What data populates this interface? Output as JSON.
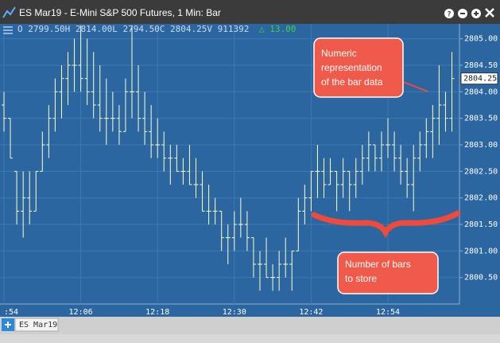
{
  "window": {
    "title": "ES Mar19 - E-Mini S&P 500 Futures, 1 Min: Bar",
    "info": "O 2799.50H 2814.00L 2794.50C 2804.25V 911392",
    "change": "△ 13.00",
    "tab": "ES Mar19"
  },
  "annotations": {
    "numeric": [
      "Numeric",
      "representation",
      "of the bar data"
    ],
    "bars": [
      "Number of bars",
      "to store"
    ]
  },
  "chart_data": {
    "type": "ohlc",
    "color": "#ffffc8",
    "categories": [
      ":54",
      null,
      null,
      null,
      null,
      null,
      null,
      null,
      null,
      null,
      null,
      null,
      "12:06",
      null,
      null,
      null,
      null,
      null,
      null,
      null,
      null,
      null,
      null,
      null,
      "12:18",
      null,
      null,
      null,
      null,
      null,
      null,
      null,
      null,
      null,
      null,
      null,
      "12:30",
      null,
      null,
      null,
      null,
      null,
      null,
      null,
      null,
      null,
      null,
      null,
      "12:42",
      null,
      null,
      null,
      null,
      null,
      null,
      null,
      null,
      null,
      null,
      null,
      "12:54",
      null,
      null,
      null,
      null,
      null,
      null,
      null,
      null,
      null,
      null
    ],
    "open": [
      2803.75,
      2803.5,
      2802.5,
      2801.75,
      2802.0,
      2801.75,
      2802.5,
      2803.0,
      2803.5,
      2804.0,
      2804.25,
      2804.5,
      2804.5,
      2804.25,
      2804.0,
      2803.75,
      2803.5,
      2803.5,
      2803.5,
      2803.25,
      2804.0,
      2804.0,
      2803.5,
      2803.25,
      2803.0,
      2803.0,
      2802.75,
      2802.75,
      2802.5,
      2802.5,
      2802.25,
      2802.25,
      2801.75,
      2801.75,
      2801.75,
      2801.25,
      2801.25,
      2801.5,
      2801.5,
      2801.25,
      2800.75,
      2800.75,
      2800.5,
      2800.5,
      2800.75,
      2800.75,
      2801.0,
      2801.75,
      2802.0,
      2802.5,
      2802.5,
      2802.25,
      2802.5,
      2802.25,
      2802.5,
      2802.25,
      2802.5,
      2802.75,
      2803.0,
      2802.75,
      2803.0,
      2803.0,
      2802.75,
      2802.5,
      2802.25,
      2802.75,
      2803.0,
      2803.25,
      2803.5,
      2803.75,
      2803.5
    ],
    "high": [
      2804.0,
      2803.5,
      2802.5,
      2802.5,
      2802.5,
      2802.5,
      2803.25,
      2803.75,
      2804.25,
      2804.5,
      2804.75,
      2805.0,
      2805.25,
      2805.0,
      2804.75,
      2804.5,
      2804.25,
      2804.0,
      2803.75,
      2804.25,
      2805.25,
      2804.5,
      2804.0,
      2803.75,
      2803.5,
      2803.25,
      2803.0,
      2803.0,
      2802.75,
      2803.0,
      2802.75,
      2802.5,
      2802.25,
      2802.0,
      2801.75,
      2801.5,
      2801.75,
      2802.0,
      2801.75,
      2801.25,
      2801.0,
      2801.25,
      2800.75,
      2801.0,
      2801.25,
      2801.0,
      2802.0,
      2802.25,
      2802.5,
      2803.0,
      2802.75,
      2802.75,
      2802.5,
      2802.75,
      2802.5,
      2802.75,
      2803.0,
      2803.25,
      2803.0,
      2803.25,
      2803.5,
      2803.25,
      2803.0,
      2802.75,
      2803.0,
      2803.25,
      2803.5,
      2803.75,
      2804.5,
      2804.0,
      2804.75
    ],
    "low": [
      2803.25,
      2802.75,
      2801.5,
      2801.25,
      2801.5,
      2801.75,
      2802.5,
      2802.75,
      2803.25,
      2803.5,
      2803.75,
      2804.0,
      2804.0,
      2803.75,
      2803.5,
      2803.25,
      2803.0,
      2803.25,
      2803.0,
      2803.25,
      2803.5,
      2803.25,
      2803.0,
      2802.75,
      2802.75,
      2802.5,
      2802.25,
      2802.5,
      2802.25,
      2802.25,
      2802.0,
      2801.75,
      2801.5,
      2801.5,
      2801.0,
      2800.75,
      2801.0,
      2801.25,
      2801.0,
      2800.5,
      2800.25,
      2800.5,
      2800.25,
      2800.25,
      2800.5,
      2800.25,
      2801.0,
      2801.5,
      2801.75,
      2802.0,
      2802.0,
      2802.25,
      2801.75,
      2802.0,
      2801.75,
      2802.0,
      2802.25,
      2802.5,
      2802.5,
      2802.5,
      2802.75,
      2802.5,
      2802.25,
      2802.0,
      2801.75,
      2802.5,
      2802.75,
      2802.75,
      2803.0,
      2803.25,
      2803.25
    ],
    "close": [
      2803.5,
      2802.75,
      2801.75,
      2802.0,
      2801.75,
      2802.5,
      2803.0,
      2803.5,
      2804.0,
      2804.25,
      2804.5,
      2804.5,
      2804.25,
      2804.0,
      2803.75,
      2803.5,
      2803.5,
      2803.5,
      2803.25,
      2804.0,
      2804.0,
      2803.5,
      2803.25,
      2803.0,
      2803.0,
      2802.75,
      2802.75,
      2802.5,
      2802.5,
      2802.25,
      2802.25,
      2801.75,
      2801.75,
      2801.75,
      2801.25,
      2801.25,
      2801.5,
      2801.5,
      2801.25,
      2800.75,
      2800.75,
      2800.5,
      2800.5,
      2800.75,
      2800.75,
      2801.0,
      2801.75,
      2802.0,
      2802.5,
      2802.5,
      2802.25,
      2802.5,
      2802.25,
      2802.5,
      2802.25,
      2802.5,
      2802.75,
      2803.0,
      2802.75,
      2803.0,
      2803.0,
      2802.75,
      2802.5,
      2802.25,
      2802.75,
      2803.0,
      2803.25,
      2803.5,
      2803.75,
      2803.5,
      2804.25
    ],
    "ylim": [
      2800.0,
      2805.25
    ],
    "yticks": [
      {
        "value": 2800.5,
        "label": "2800.50"
      },
      {
        "value": 2801,
        "label": "2801.00"
      },
      {
        "value": 2801.5,
        "label": "2801.50"
      },
      {
        "value": 2802,
        "label": "2802.00"
      },
      {
        "value": 2802.5,
        "label": "2802.50"
      },
      {
        "value": 2803,
        "label": "2803.00"
      },
      {
        "value": 2803.5,
        "label": "2803.50"
      },
      {
        "value": 2804,
        "label": "2804.00"
      },
      {
        "value": 2804.5,
        "label": "2804.50"
      },
      {
        "value": 2805,
        "label": "2805.00"
      }
    ],
    "grid": true
  }
}
